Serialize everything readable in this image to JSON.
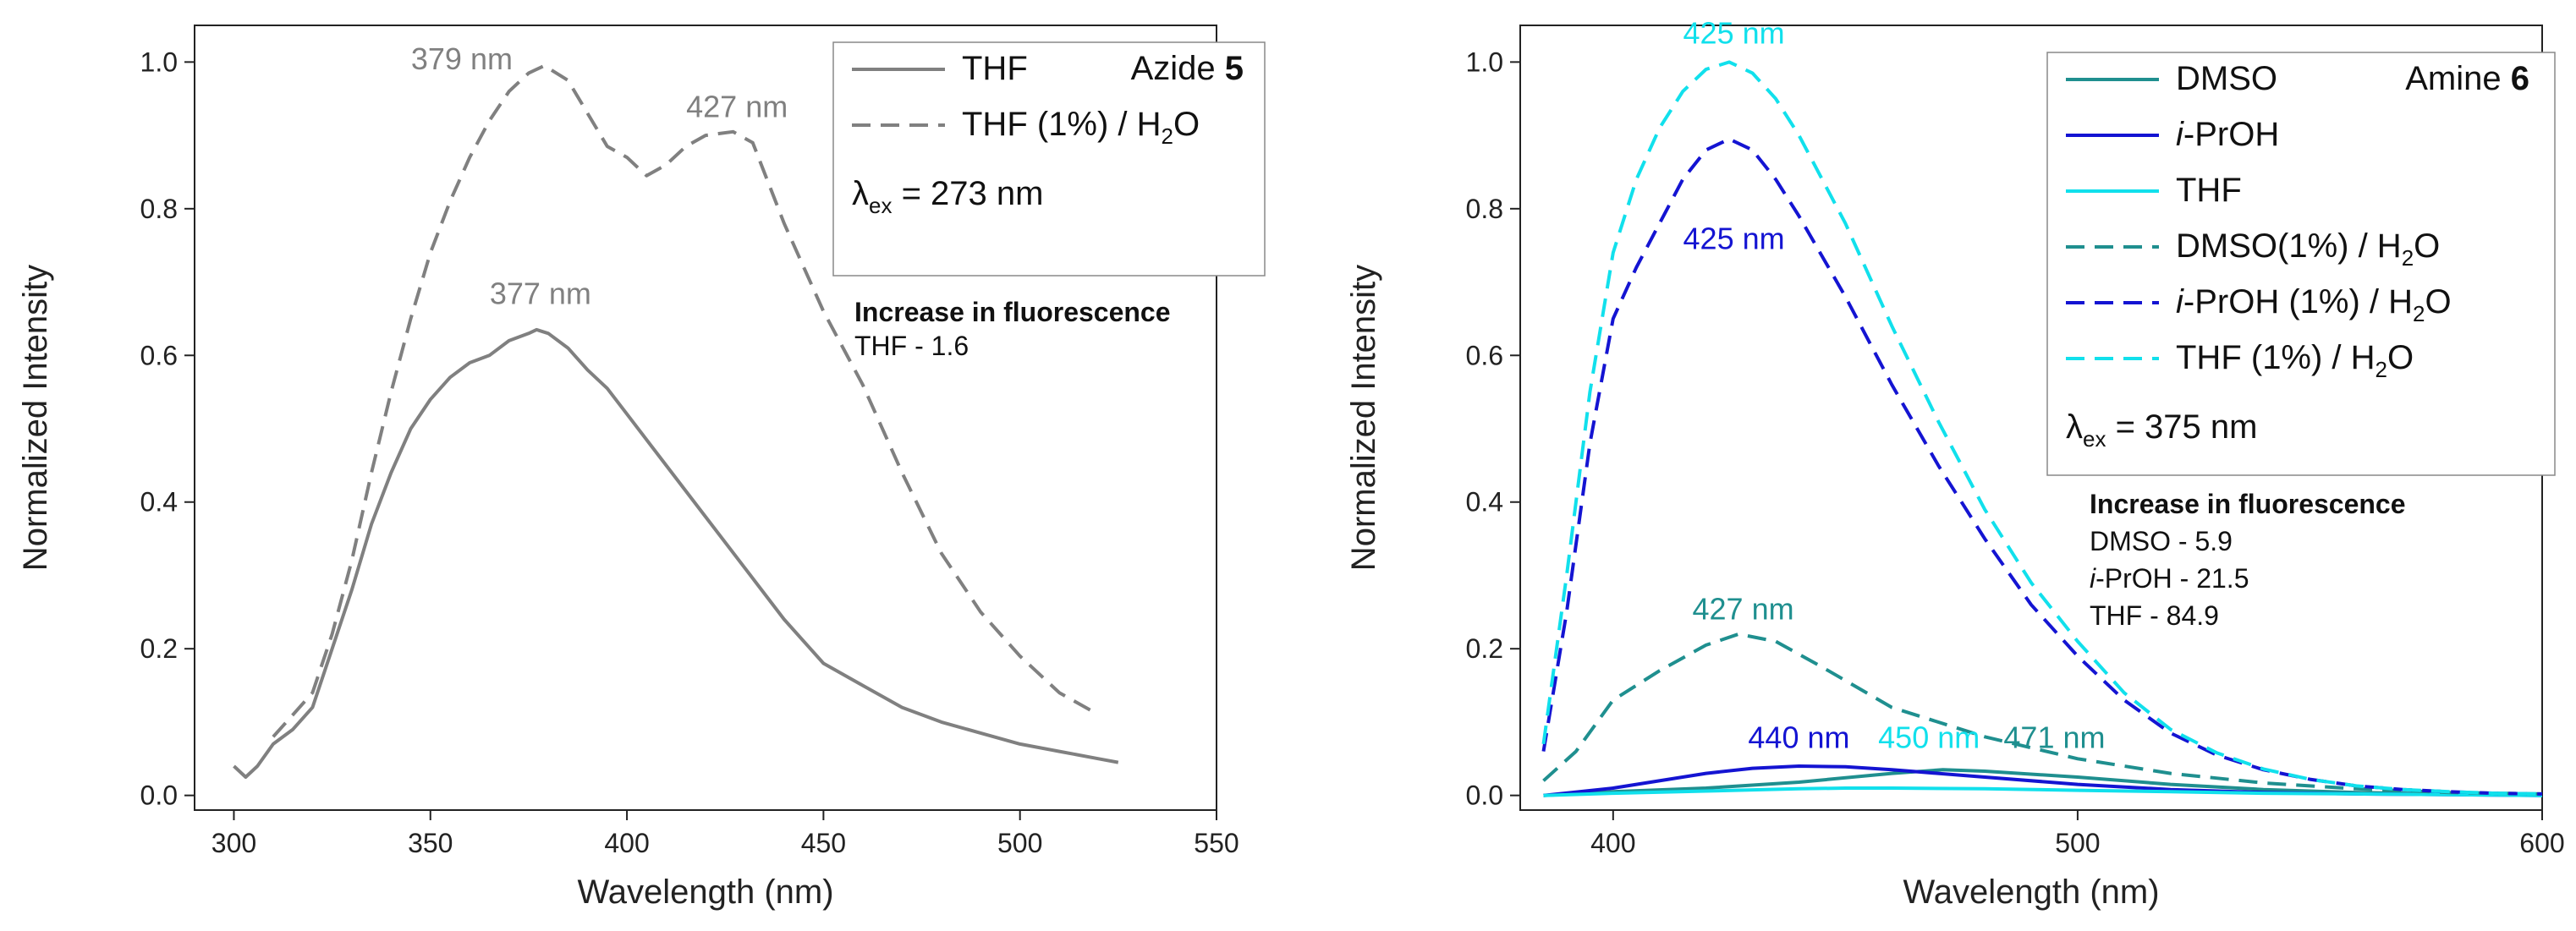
{
  "chart_data": [
    {
      "type": "line",
      "xlabel": "Wavelength (nm)",
      "ylabel": "Normalized Intensity",
      "xlim": [
        290,
        550
      ],
      "ylim": [
        -0.02,
        1.05
      ],
      "xticks": [
        300,
        350,
        400,
        450,
        500,
        550
      ],
      "yticks": [
        0.0,
        0.2,
        0.4,
        0.6,
        0.8,
        1.0
      ],
      "xtick_labels": [
        "300",
        "350",
        "400",
        "450",
        "500",
        "550"
      ],
      "ytick_labels": [
        "0.0",
        "0.2",
        "0.4",
        "0.6",
        "0.8",
        "1.0"
      ],
      "legend": {
        "title": "Azide",
        "title_bold": "5",
        "position": "top-right",
        "excitation": {
          "symbol": "λ",
          "sub": "ex",
          "text": " = 273 nm"
        }
      },
      "note": {
        "heading": "Increase in fluorescence",
        "lines": [
          "THF - 1.6"
        ]
      },
      "series": [
        {
          "name": "THF",
          "name_suffix": "",
          "color": "#808080",
          "dash": false,
          "x": [
            300,
            303,
            306,
            310,
            315,
            320,
            325,
            330,
            335,
            340,
            345,
            350,
            355,
            360,
            365,
            370,
            375,
            377,
            380,
            385,
            390,
            395,
            400,
            410,
            420,
            430,
            440,
            450,
            460,
            470,
            480,
            490,
            500,
            510,
            520,
            525
          ],
          "y": [
            0.04,
            0.025,
            0.04,
            0.07,
            0.09,
            0.12,
            0.2,
            0.28,
            0.37,
            0.44,
            0.5,
            0.54,
            0.57,
            0.59,
            0.6,
            0.62,
            0.63,
            0.635,
            0.63,
            0.61,
            0.58,
            0.555,
            0.52,
            0.45,
            0.38,
            0.31,
            0.24,
            0.18,
            0.15,
            0.12,
            0.1,
            0.085,
            0.07,
            0.06,
            0.05,
            0.045
          ]
        },
        {
          "name": "THF (1%) / H",
          "name_suffix": "2O",
          "color": "#808080",
          "dash": true,
          "x": [
            310,
            315,
            320,
            325,
            330,
            335,
            340,
            345,
            350,
            355,
            360,
            365,
            370,
            375,
            379,
            385,
            390,
            395,
            400,
            405,
            410,
            415,
            420,
            427,
            432,
            440,
            450,
            460,
            470,
            480,
            490,
            500,
            510,
            520
          ],
          "y": [
            0.08,
            0.11,
            0.14,
            0.22,
            0.32,
            0.44,
            0.55,
            0.65,
            0.74,
            0.81,
            0.87,
            0.92,
            0.96,
            0.985,
            0.995,
            0.975,
            0.93,
            0.885,
            0.87,
            0.845,
            0.86,
            0.885,
            0.9,
            0.905,
            0.89,
            0.78,
            0.66,
            0.56,
            0.44,
            0.33,
            0.25,
            0.19,
            0.14,
            0.11
          ]
        }
      ],
      "annotations": [
        {
          "text": "379 nm",
          "x": 358,
          "y": 0.99,
          "color": "#808080"
        },
        {
          "text": "427 nm",
          "x": 428,
          "y": 0.925,
          "color": "#808080"
        },
        {
          "text": "377 nm",
          "x": 378,
          "y": 0.67,
          "color": "#808080"
        }
      ]
    },
    {
      "type": "line",
      "xlabel": "Wavelength (nm)",
      "ylabel": "Normalized Intensity",
      "xlim": [
        380,
        600
      ],
      "ylim": [
        -0.02,
        1.05
      ],
      "xticks": [
        400,
        500,
        600
      ],
      "yticks": [
        0.0,
        0.2,
        0.4,
        0.6,
        0.8,
        1.0
      ],
      "xtick_labels": [
        "400",
        "500",
        "600"
      ],
      "ytick_labels": [
        "0.0",
        "0.2",
        "0.4",
        "0.6",
        "0.8",
        "1.0"
      ],
      "legend": {
        "title": "Amine",
        "title_bold": "6",
        "position": "top-right",
        "excitation": {
          "symbol": "λ",
          "sub": "ex",
          "text": " = 375 nm"
        }
      },
      "note": {
        "heading": "Increase in fluorescence",
        "lines": [
          "DMSO - 5.9",
          "i-PrOH - 21.5",
          "THF - 84.9"
        ]
      },
      "series": [
        {
          "name": "DMSO",
          "name_suffix": "",
          "color": "#1f8f8f",
          "dash": false,
          "x": [
            385,
            400,
            420,
            440,
            460,
            471,
            480,
            500,
            520,
            540,
            560,
            580,
            600
          ],
          "y": [
            0.0,
            0.005,
            0.01,
            0.018,
            0.03,
            0.035,
            0.033,
            0.025,
            0.015,
            0.008,
            0.004,
            0.002,
            0.001
          ]
        },
        {
          "name": "i-PrOH",
          "name_suffix": "",
          "color": "#1414d2",
          "dash": false,
          "x": [
            385,
            400,
            420,
            430,
            440,
            450,
            460,
            480,
            500,
            520,
            540,
            560,
            580,
            600
          ],
          "y": [
            0.0,
            0.01,
            0.03,
            0.037,
            0.04,
            0.039,
            0.035,
            0.025,
            0.015,
            0.008,
            0.004,
            0.002,
            0.001,
            0.0
          ]
        },
        {
          "name": "THF",
          "name_suffix": "",
          "color": "#11e0ec",
          "dash": false,
          "x": [
            385,
            400,
            420,
            440,
            450,
            460,
            480,
            500,
            520,
            540,
            560,
            580,
            600
          ],
          "y": [
            0.0,
            0.003,
            0.006,
            0.009,
            0.01,
            0.01,
            0.009,
            0.007,
            0.005,
            0.003,
            0.002,
            0.001,
            0.0
          ]
        },
        {
          "name": "DMSO(1%) / H",
          "name_suffix": "2O",
          "color": "#1f8f8f",
          "dash": true,
          "x": [
            385,
            392,
            400,
            410,
            420,
            427,
            435,
            445,
            460,
            480,
            500,
            520,
            540,
            560,
            580,
            600
          ],
          "y": [
            0.02,
            0.06,
            0.13,
            0.17,
            0.205,
            0.22,
            0.21,
            0.175,
            0.12,
            0.08,
            0.05,
            0.03,
            0.017,
            0.009,
            0.004,
            0.002
          ]
        },
        {
          "name": "i-PrOH (1%) / H",
          "name_suffix": "2O",
          "color": "#1414d2",
          "dash": true,
          "x": [
            385,
            390,
            395,
            400,
            405,
            410,
            415,
            420,
            425,
            430,
            435,
            440,
            450,
            460,
            470,
            480,
            490,
            500,
            510,
            520,
            530,
            540,
            550,
            560,
            570,
            580,
            590,
            600
          ],
          "y": [
            0.06,
            0.25,
            0.48,
            0.65,
            0.72,
            0.78,
            0.84,
            0.88,
            0.895,
            0.88,
            0.84,
            0.79,
            0.68,
            0.56,
            0.45,
            0.35,
            0.26,
            0.19,
            0.13,
            0.085,
            0.055,
            0.035,
            0.022,
            0.013,
            0.008,
            0.005,
            0.003,
            0.002
          ]
        },
        {
          "name": "THF (1%) / H",
          "name_suffix": "2O",
          "color": "#11e0ec",
          "dash": true,
          "x": [
            385,
            390,
            395,
            400,
            405,
            410,
            415,
            420,
            425,
            430,
            435,
            440,
            450,
            460,
            470,
            480,
            490,
            500,
            510,
            520,
            530,
            540,
            550,
            560,
            570,
            580,
            590,
            600
          ],
          "y": [
            0.07,
            0.3,
            0.55,
            0.74,
            0.84,
            0.91,
            0.96,
            0.99,
            1.0,
            0.985,
            0.95,
            0.9,
            0.78,
            0.64,
            0.51,
            0.39,
            0.29,
            0.21,
            0.14,
            0.09,
            0.058,
            0.036,
            0.022,
            0.013,
            0.008,
            0.005,
            0.003,
            0.002
          ]
        }
      ],
      "annotations": [
        {
          "text": "425 nm",
          "x": 426,
          "y": 1.025,
          "color": "#11e0ec"
        },
        {
          "text": "425 nm",
          "x": 426,
          "y": 0.745,
          "color": "#1414d2"
        },
        {
          "text": "427 nm",
          "x": 428,
          "y": 0.24,
          "color": "#1f8f8f"
        },
        {
          "text": "440 nm",
          "x": 440,
          "y": 0.065,
          "color": "#1414d2"
        },
        {
          "text": "450 nm",
          "x": 468,
          "y": 0.065,
          "color": "#11e0ec"
        },
        {
          "text": "471 nm",
          "x": 495,
          "y": 0.065,
          "color": "#1f8f8f"
        }
      ]
    }
  ]
}
